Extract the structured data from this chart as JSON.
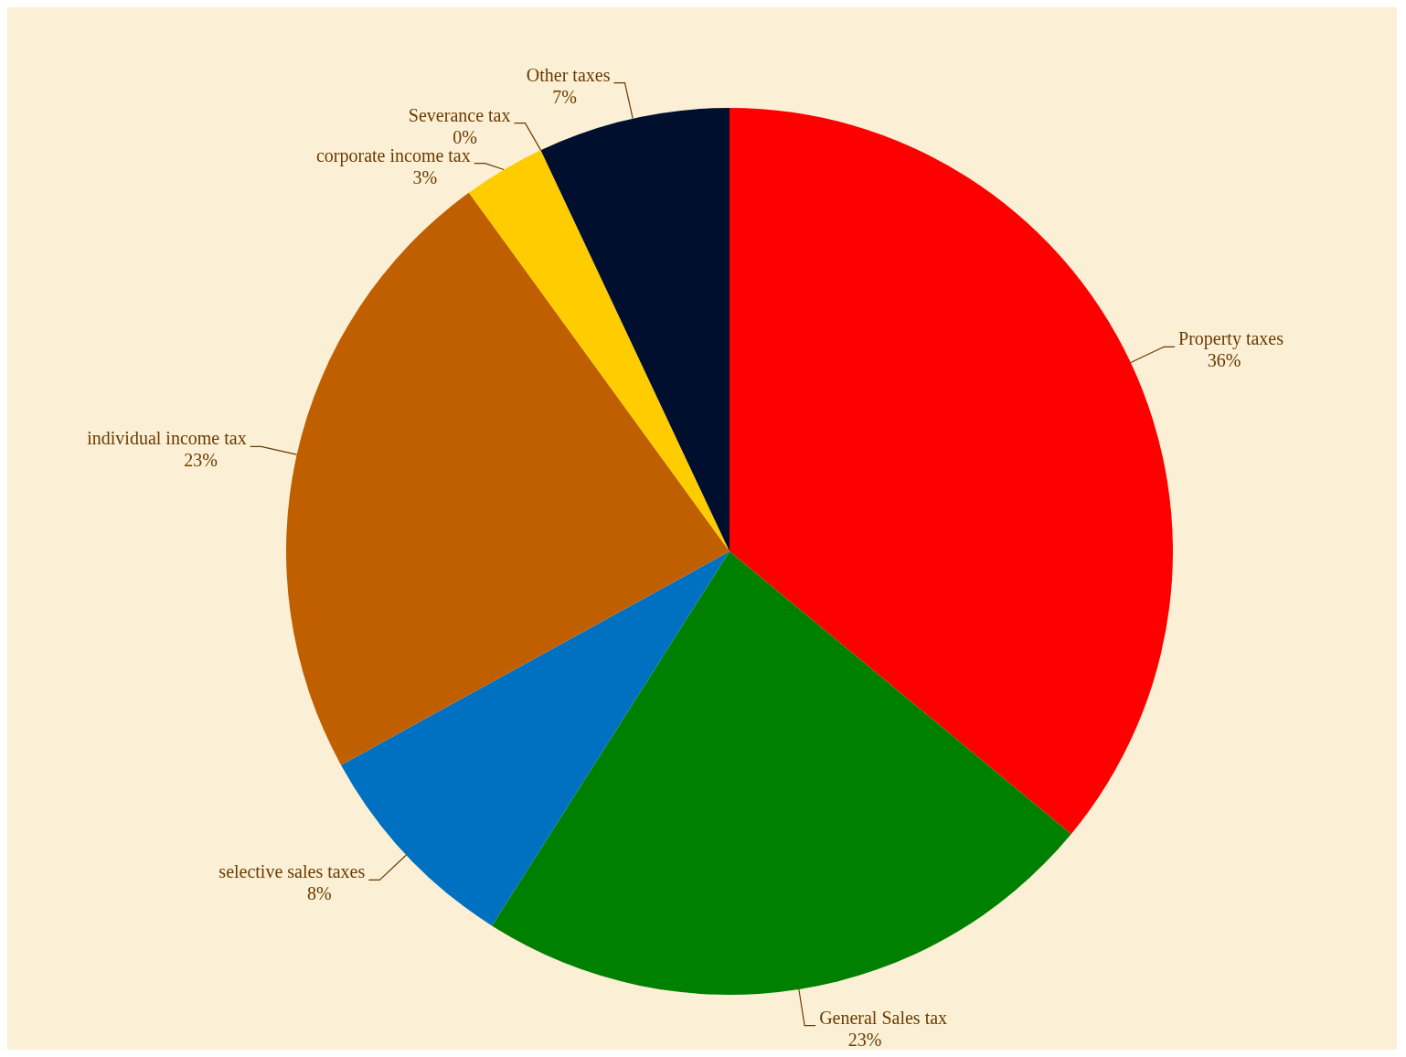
{
  "chart_data": {
    "type": "pie",
    "categories": [
      "Property taxes",
      "General Sales tax",
      "selective sales taxes",
      "individual income tax",
      "corporate income tax",
      "Severance tax",
      "Other taxes"
    ],
    "values": [
      36,
      23,
      8,
      23,
      3,
      0,
      7
    ],
    "colors": [
      "#ff0000",
      "#008000",
      "#0070c0",
      "#c05f00",
      "#ffcc00",
      "#7030a0",
      "#000f2e"
    ],
    "value_labels": [
      "36%",
      "23%",
      "8%",
      "23%",
      "3%",
      "0%",
      "7%"
    ]
  }
}
